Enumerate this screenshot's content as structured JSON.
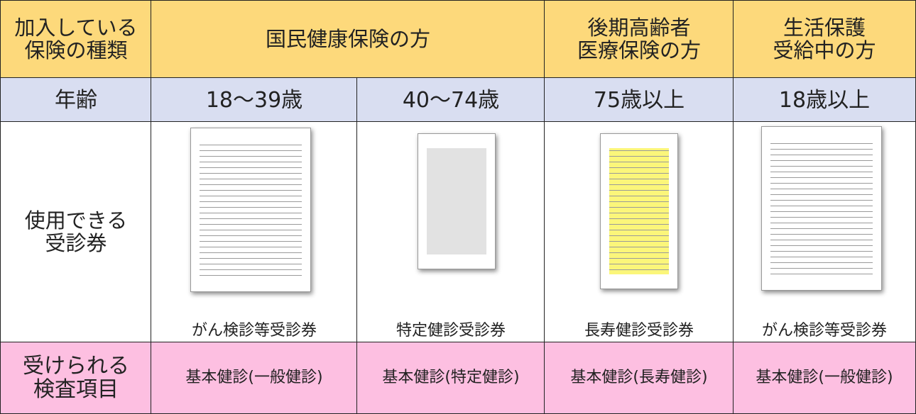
{
  "header": {
    "insurance_type": [
      "加入している",
      "保険の種類"
    ],
    "national": "国民健康保険の方",
    "late_elderly": [
      "後期高齢者",
      "医療保険の方"
    ],
    "welfare": [
      "生活保護",
      "受給中の方"
    ]
  },
  "age_row": {
    "label": "年齢",
    "ages": [
      "18～39歳",
      "40～74歳",
      "75歳以上",
      "18歳以上"
    ]
  },
  "voucher_row": {
    "label": [
      "使用できる",
      "受診券"
    ],
    "vouchers": [
      "がん検診等受診券",
      "特定健診受診券",
      "長寿健診受診券",
      "がん検診等受診券"
    ]
  },
  "exam_row": {
    "label": [
      "受けられる",
      "検査項目"
    ],
    "exams": [
      "基本健診(一般健診)",
      "基本健診(特定健診)",
      "基本健診(長寿健診)",
      "基本健診(一般健診)"
    ]
  }
}
